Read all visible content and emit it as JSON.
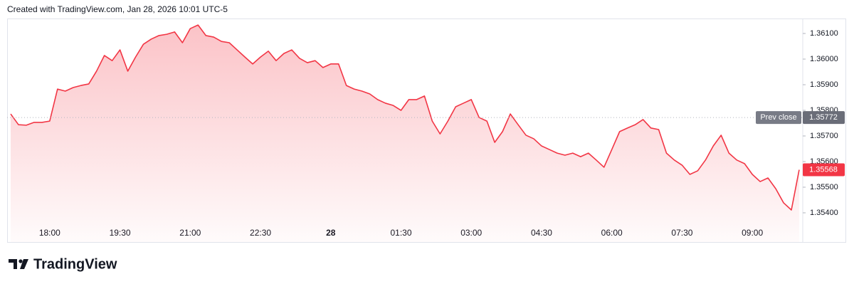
{
  "header_text": "Created with TradingView.com, Jan 28, 2026 10:01 UTC-5",
  "brand": "TradingView",
  "chart_data": {
    "type": "line",
    "color": "#f23645",
    "categories": [
      null,
      null,
      null,
      null,
      null,
      "18:00",
      null,
      null,
      null,
      null,
      null,
      null,
      null,
      null,
      "19:30",
      null,
      null,
      null,
      null,
      null,
      null,
      null,
      null,
      "21:00",
      null,
      null,
      null,
      null,
      null,
      null,
      null,
      null,
      "22:30",
      null,
      null,
      null,
      null,
      null,
      null,
      null,
      null,
      "28",
      null,
      null,
      null,
      null,
      null,
      null,
      null,
      null,
      "01:30",
      null,
      null,
      null,
      null,
      null,
      null,
      null,
      null,
      "03:00",
      null,
      null,
      null,
      null,
      null,
      null,
      null,
      null,
      "04:30",
      null,
      null,
      null,
      null,
      null,
      null,
      null,
      null,
      "06:00",
      null,
      null,
      null,
      null,
      null,
      null,
      null,
      null,
      "07:30",
      null,
      null,
      null,
      null,
      null,
      null,
      null,
      null,
      "09:00",
      null,
      null,
      null,
      null,
      null,
      null
    ],
    "values": [
      1.35786,
      1.35744,
      1.35742,
      1.35753,
      1.35753,
      1.35758,
      1.35883,
      1.35875,
      1.35889,
      1.35897,
      1.35903,
      1.35953,
      1.36014,
      1.35994,
      1.36036,
      1.35953,
      1.36008,
      1.36058,
      1.36078,
      1.36092,
      1.36097,
      1.36106,
      1.36064,
      1.36119,
      1.36133,
      1.36092,
      1.36086,
      1.36069,
      1.36064,
      1.36036,
      1.36008,
      1.35981,
      1.36008,
      1.36031,
      1.35994,
      1.36022,
      1.36036,
      1.36003,
      1.35986,
      1.35994,
      1.35967,
      1.35981,
      1.35981,
      1.35897,
      1.35883,
      1.35875,
      1.35864,
      1.35842,
      1.35828,
      1.35819,
      1.358,
      1.35842,
      1.35842,
      1.35856,
      1.35758,
      1.35708,
      1.35758,
      1.35814,
      1.35828,
      1.35842,
      1.35772,
      1.35758,
      1.35675,
      1.35717,
      1.35786,
      1.35744,
      1.35703,
      1.35689,
      1.35661,
      1.35647,
      1.35633,
      1.35625,
      1.35633,
      1.35619,
      1.35633,
      1.35606,
      1.35578,
      1.35647,
      1.35717,
      1.35731,
      1.35744,
      1.35764,
      1.35731,
      1.35725,
      1.35633,
      1.35606,
      1.35586,
      1.3555,
      1.35564,
      1.35606,
      1.35661,
      1.35703,
      1.35633,
      1.35606,
      1.35592,
      1.3555,
      1.35522,
      1.35536,
      1.35494,
      1.35439,
      1.35411,
      1.35568
    ],
    "ylim": [
      1.35286,
      1.36189
    ],
    "yticks": [
      {
        "value": 1.354,
        "label": "1.35400"
      },
      {
        "value": 1.355,
        "label": "1.35500"
      },
      {
        "value": 1.356,
        "label": "1.35600"
      },
      {
        "value": 1.357,
        "label": "1.35700"
      },
      {
        "value": 1.358,
        "label": "1.35800"
      },
      {
        "value": 1.359,
        "label": "1.35900"
      },
      {
        "value": 1.36,
        "label": "1.36000"
      },
      {
        "value": 1.361,
        "label": "1.36100"
      }
    ],
    "prev_close_text": "Prev close",
    "prev_close": 1.35772,
    "last_price": 1.35568
  }
}
